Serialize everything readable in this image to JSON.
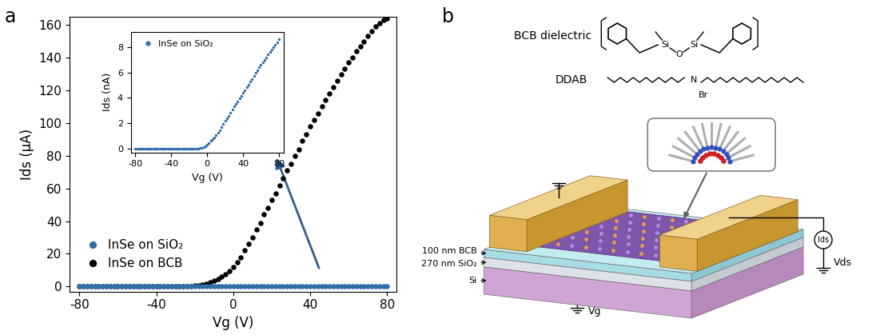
{
  "panel_labels": [
    "a",
    "b"
  ],
  "chart_data": [
    {
      "type": "scatter",
      "x_label": "Vg (V)",
      "y_label": "Ids (μA)",
      "x": [
        -80,
        -78,
        -76,
        -74,
        -72,
        -70,
        -68,
        -66,
        -64,
        -62,
        -60,
        -58,
        -56,
        -54,
        -52,
        -50,
        -48,
        -46,
        -44,
        -42,
        -40,
        -38,
        -36,
        -34,
        -32,
        -30,
        -28,
        -26,
        -24,
        -22,
        -20,
        -18,
        -16,
        -14,
        -12,
        -10,
        -8,
        -6,
        -4,
        -2,
        0,
        2,
        4,
        6,
        8,
        10,
        12,
        14,
        16,
        18,
        20,
        22,
        24,
        26,
        28,
        30,
        32,
        34,
        36,
        38,
        40,
        42,
        44,
        46,
        48,
        50,
        52,
        54,
        56,
        58,
        60,
        62,
        64,
        66,
        68,
        70,
        72,
        74,
        76,
        78,
        80
      ],
      "series": [
        {
          "name": "InSe on SiO₂",
          "color": "#2f6ea8",
          "marker": "circle",
          "values": [
            0,
            0,
            0,
            0,
            0,
            0,
            0,
            0,
            0,
            0,
            0,
            0,
            0,
            0,
            0,
            0,
            0,
            0,
            0,
            0,
            0,
            0,
            0,
            0,
            0,
            0,
            0,
            0,
            0,
            0,
            0,
            0,
            0,
            0,
            0,
            0,
            0,
            0,
            0,
            0,
            0,
            0,
            0,
            0,
            0,
            0,
            0,
            0,
            0,
            0,
            0,
            0,
            0,
            0,
            0,
            0,
            0,
            0,
            0,
            0,
            0,
            0,
            0,
            0,
            0,
            0,
            0,
            0,
            0,
            0,
            0,
            0,
            0,
            0,
            0,
            0,
            0,
            0,
            0,
            0,
            0
          ]
        },
        {
          "name": "InSe on BCB",
          "color": "#000000",
          "marker": "circle",
          "values": [
            0,
            0,
            0,
            0,
            0,
            0,
            0,
            0,
            0,
            0,
            0,
            0,
            0,
            0,
            0,
            0,
            0,
            0,
            0,
            0,
            0,
            0,
            0,
            0,
            0,
            0.1,
            0.2,
            0.2,
            0.3,
            0.4,
            0.6,
            0.9,
            1.2,
            1.8,
            2.5,
            3.4,
            4.5,
            5.9,
            7.5,
            9.6,
            12,
            15,
            18,
            22,
            26,
            30,
            35,
            39,
            44,
            48,
            53,
            57,
            62,
            66,
            71,
            75,
            80,
            84,
            89,
            93,
            98,
            102,
            106,
            110,
            114,
            118,
            122,
            126,
            130,
            133,
            137,
            140,
            144,
            147,
            150,
            153,
            156,
            159,
            161,
            163,
            164
          ]
        }
      ],
      "xlim": [
        -85,
        85
      ],
      "ylim": [
        -3,
        165
      ],
      "xticks": [
        -80,
        -40,
        0,
        40,
        80
      ],
      "yticks": [
        0,
        20,
        40,
        60,
        80,
        100,
        120,
        140,
        160
      ],
      "legend": "lower left",
      "grid": false
    },
    {
      "type": "scatter",
      "x_label": "Vg (V)",
      "y_label": "Ids (nA)",
      "x": [
        -80,
        -78,
        -76,
        -74,
        -72,
        -70,
        -68,
        -66,
        -64,
        -62,
        -60,
        -58,
        -56,
        -54,
        -52,
        -50,
        -48,
        -46,
        -44,
        -42,
        -40,
        -38,
        -36,
        -34,
        -32,
        -30,
        -28,
        -26,
        -24,
        -22,
        -20,
        -18,
        -16,
        -14,
        -12,
        -10,
        -8,
        -6,
        -4,
        -2,
        0,
        2,
        4,
        6,
        8,
        10,
        12,
        14,
        16,
        18,
        20,
        22,
        24,
        26,
        28,
        30,
        32,
        34,
        36,
        38,
        40,
        42,
        44,
        46,
        48,
        50,
        52,
        54,
        56,
        58,
        60,
        62,
        64,
        66,
        68,
        70,
        72,
        74,
        76,
        78,
        80
      ],
      "series": [
        {
          "name": "InSe on SiO₂",
          "color": "#2f6ea8",
          "marker": "circle",
          "values": [
            0,
            0,
            0,
            0,
            0,
            0,
            0,
            0,
            0,
            0,
            0,
            0,
            0,
            0,
            0,
            0,
            0,
            0,
            0,
            0,
            0,
            0,
            0,
            0,
            0,
            0,
            0,
            0,
            0,
            0,
            0,
            0,
            0,
            0,
            0,
            0.02,
            0.04,
            0.07,
            0.12,
            0.2,
            0.3,
            0.45,
            0.6,
            0.75,
            0.9,
            1.05,
            1.25,
            1.45,
            1.7,
            1.95,
            2.2,
            2.4,
            2.6,
            2.85,
            3.05,
            3.3,
            3.5,
            3.7,
            3.95,
            4.15,
            4.4,
            4.6,
            4.85,
            5.05,
            5.3,
            5.5,
            5.75,
            5.95,
            6.15,
            6.4,
            6.6,
            6.8,
            7.0,
            7.2,
            7.4,
            7.6,
            7.8,
            8.0,
            8.2,
            8.4,
            8.6
          ]
        }
      ],
      "xlim": [
        -85,
        85
      ],
      "ylim": [
        -0.3,
        9.2
      ],
      "xticks": [
        -80,
        -40,
        0,
        40,
        80
      ],
      "yticks": [
        0,
        2,
        4,
        6,
        8
      ],
      "legend": "upper left",
      "grid": false
    }
  ],
  "diagram": {
    "bcb_label": "BCB dielectric",
    "bcb_atoms": [
      "Si",
      "O",
      "Si"
    ],
    "ddab_label": "DDAB",
    "ddab_atoms": [
      "N",
      "Br"
    ],
    "layers": [
      "100 nm BCB",
      "270 nm SiO₂",
      "Si"
    ],
    "current": "Ids",
    "drain_voltage": "Vds",
    "gate_voltage": "Vg"
  }
}
